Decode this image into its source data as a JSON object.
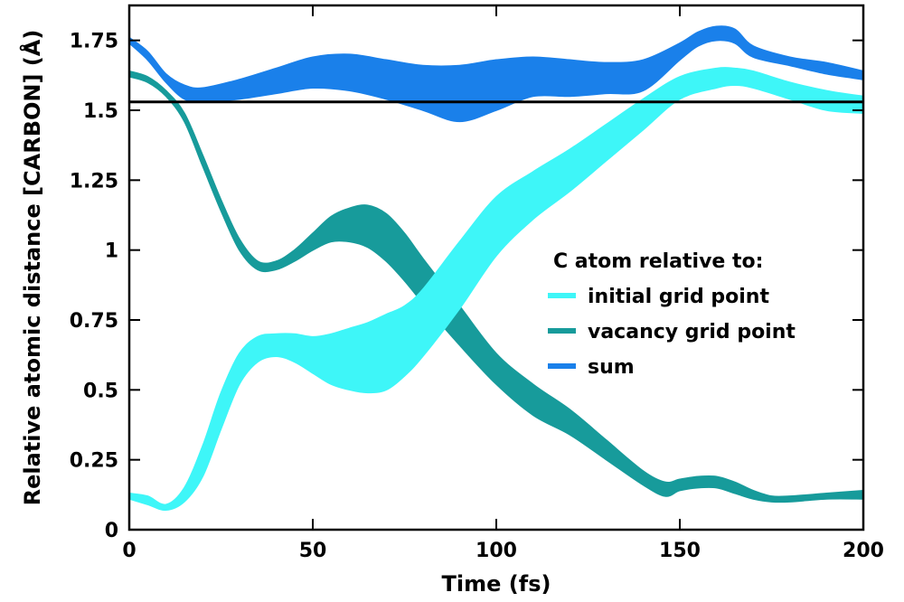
{
  "chart_data": {
    "type": "area",
    "title": "",
    "xlabel": "Time (fs)",
    "ylabel": "Relative atomic distance [CARBON] (Å)",
    "xlim": [
      0,
      200
    ],
    "ylim": [
      0,
      1.875
    ],
    "x_ticks": [
      0,
      50,
      100,
      150,
      200
    ],
    "x_tick_labels": [
      "0",
      "50",
      "100",
      "150",
      "200"
    ],
    "y_ticks": [
      0,
      0.25,
      0.5,
      0.75,
      1,
      1.25,
      1.5,
      1.75
    ],
    "y_tick_labels": [
      "0",
      "0.25",
      "0.5",
      "0.75",
      "1",
      "1.25",
      "1.5",
      "1.75"
    ],
    "grid": false,
    "reference_line": {
      "y": 1.53,
      "color": "#000000"
    },
    "legend": {
      "title": "C atom relative to:",
      "placement": "center-right",
      "entries": [
        "initial grid point",
        "vacancy grid point",
        "sum"
      ]
    },
    "series": [
      {
        "name": "sum",
        "color": "#1a80ea",
        "x": [
          0,
          5,
          10,
          15,
          20,
          30,
          40,
          50,
          60,
          70,
          80,
          90,
          100,
          110,
          120,
          130,
          140,
          150,
          155,
          160,
          165,
          170,
          180,
          190,
          200
        ],
        "upper": [
          1.76,
          1.71,
          1.63,
          1.59,
          1.58,
          1.61,
          1.65,
          1.69,
          1.7,
          1.68,
          1.66,
          1.66,
          1.68,
          1.69,
          1.68,
          1.67,
          1.68,
          1.74,
          1.78,
          1.8,
          1.79,
          1.73,
          1.69,
          1.67,
          1.64
        ],
        "lower": [
          1.74,
          1.68,
          1.6,
          1.54,
          1.53,
          1.54,
          1.56,
          1.58,
          1.57,
          1.54,
          1.5,
          1.46,
          1.5,
          1.55,
          1.55,
          1.56,
          1.57,
          1.68,
          1.73,
          1.75,
          1.74,
          1.69,
          1.66,
          1.63,
          1.61
        ]
      },
      {
        "name": "vacancy grid point",
        "color": "#179b9b",
        "x": [
          0,
          5,
          10,
          15,
          20,
          25,
          30,
          35,
          40,
          45,
          50,
          55,
          60,
          65,
          70,
          75,
          80,
          90,
          100,
          110,
          120,
          130,
          140,
          146,
          150,
          155,
          160,
          165,
          170,
          175,
          180,
          190,
          200
        ],
        "upper": [
          1.64,
          1.62,
          1.57,
          1.49,
          1.34,
          1.18,
          1.04,
          0.96,
          0.96,
          1.0,
          1.06,
          1.12,
          1.15,
          1.16,
          1.13,
          1.06,
          0.97,
          0.8,
          0.63,
          0.52,
          0.43,
          0.32,
          0.21,
          0.17,
          0.18,
          0.19,
          0.19,
          0.17,
          0.14,
          0.12,
          0.12,
          0.13,
          0.14
        ],
        "lower": [
          1.62,
          1.6,
          1.55,
          1.46,
          1.3,
          1.14,
          1.0,
          0.93,
          0.93,
          0.96,
          1.0,
          1.03,
          1.03,
          1.01,
          0.96,
          0.89,
          0.81,
          0.66,
          0.52,
          0.41,
          0.34,
          0.25,
          0.16,
          0.12,
          0.14,
          0.15,
          0.15,
          0.13,
          0.11,
          0.1,
          0.1,
          0.11,
          0.11
        ]
      },
      {
        "name": "initial grid point",
        "color": "#3ef6f8",
        "x": [
          0,
          5,
          10,
          15,
          20,
          25,
          30,
          35,
          40,
          45,
          50,
          55,
          60,
          65,
          70,
          75,
          80,
          90,
          100,
          110,
          120,
          130,
          140,
          150,
          160,
          165,
          170,
          180,
          190,
          200
        ],
        "upper": [
          0.13,
          0.12,
          0.09,
          0.15,
          0.3,
          0.49,
          0.63,
          0.69,
          0.7,
          0.7,
          0.69,
          0.7,
          0.72,
          0.74,
          0.77,
          0.8,
          0.86,
          1.03,
          1.19,
          1.28,
          1.36,
          1.45,
          1.54,
          1.62,
          1.65,
          1.65,
          1.64,
          1.6,
          1.57,
          1.55
        ],
        "lower": [
          0.11,
          0.09,
          0.07,
          0.1,
          0.19,
          0.36,
          0.52,
          0.6,
          0.62,
          0.6,
          0.56,
          0.52,
          0.5,
          0.49,
          0.5,
          0.55,
          0.62,
          0.79,
          0.98,
          1.11,
          1.21,
          1.32,
          1.43,
          1.54,
          1.58,
          1.59,
          1.58,
          1.54,
          1.5,
          1.49
        ]
      }
    ]
  }
}
